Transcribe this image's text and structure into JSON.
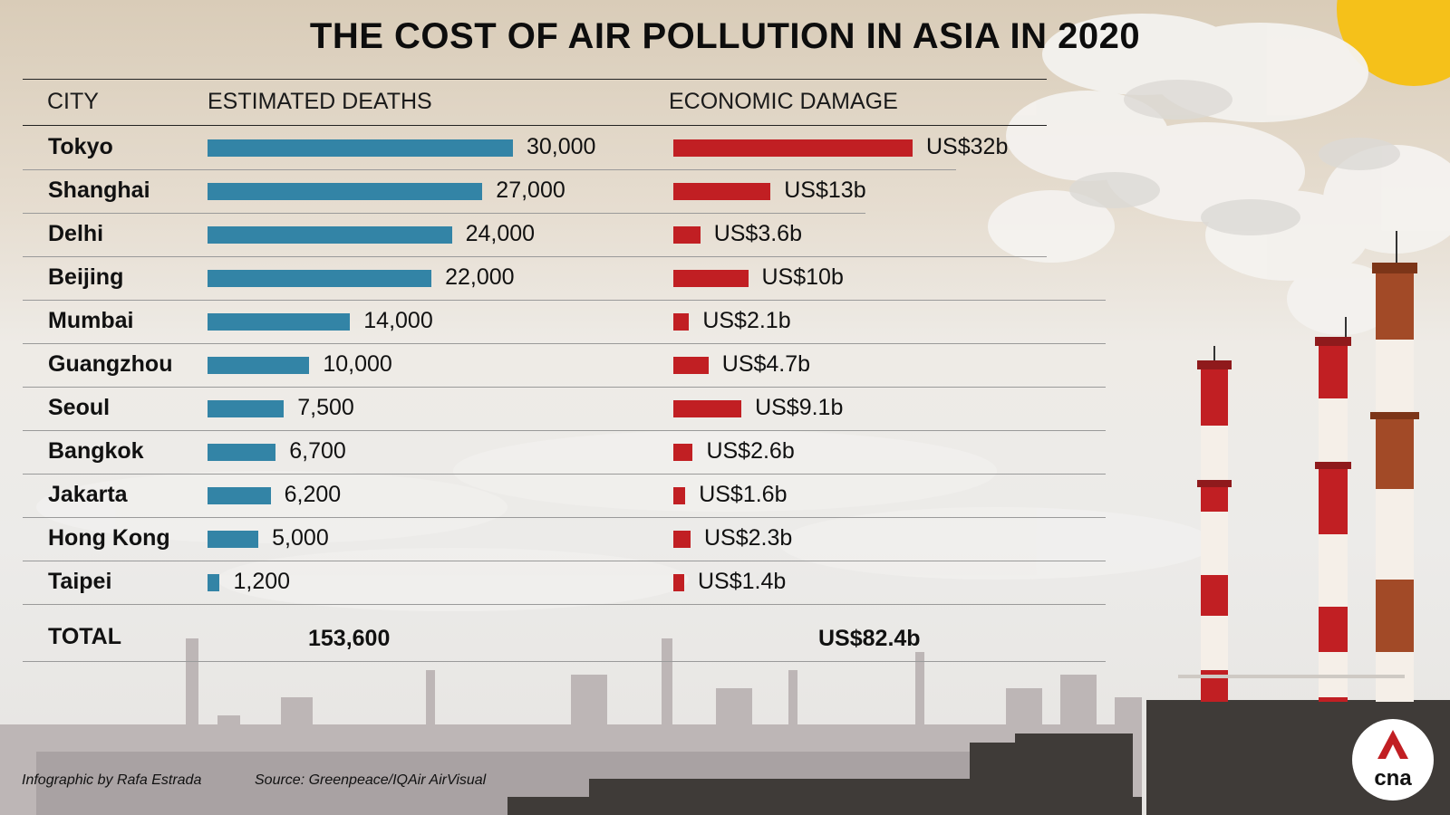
{
  "title": "THE COST OF AIR POLLUTION IN ASIA IN 2020",
  "headers": {
    "city": "CITY",
    "deaths": "ESTIMATED DEATHS",
    "damage": "ECONOMIC DAMAGE"
  },
  "colors": {
    "deaths_bar": "#3384a6",
    "damage_bar": "#c11f23",
    "sun": "#f5c11a"
  },
  "chart_data": {
    "type": "bar",
    "categories": [
      "Tokyo",
      "Shanghai",
      "Delhi",
      "Beijing",
      "Mumbai",
      "Guangzhou",
      "Seoul",
      "Bangkok",
      "Jakarta",
      "Hong Kong",
      "Taipei"
    ],
    "series": [
      {
        "name": "ESTIMATED DEATHS",
        "values": [
          30000,
          27000,
          24000,
          22000,
          14000,
          10000,
          7500,
          6700,
          6200,
          5000,
          1200
        ],
        "labels": [
          "30,000",
          "27,000",
          "24,000",
          "22,000",
          "14,000",
          "10,000",
          "7,500",
          "6,700",
          "6,200",
          "5,000",
          "1,200"
        ]
      },
      {
        "name": "ECONOMIC DAMAGE",
        "values": [
          32,
          13,
          3.6,
          10,
          2.1,
          4.7,
          9.1,
          2.6,
          1.6,
          2.3,
          1.4
        ],
        "labels": [
          "US$32b",
          "US$13b",
          "US$3.6b",
          "US$10b",
          "US$2.1b",
          "US$4.7b",
          "US$9.1b",
          "US$2.6b",
          "US$1.6b",
          "US$2.3b",
          "US$1.4b"
        ]
      }
    ],
    "orientation": "horizontal"
  },
  "total": {
    "label": "TOTAL",
    "deaths": "153,600",
    "damage": "US$82.4b"
  },
  "credits": {
    "author": "Infographic by Rafa Estrada",
    "source": "Source: Greenpeace/IQAir AirVisual"
  },
  "logo": {
    "text": "cna"
  }
}
